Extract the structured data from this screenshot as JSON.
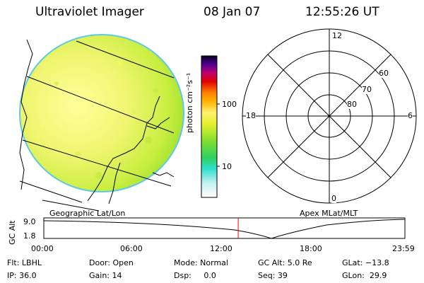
{
  "header": {
    "title": "Ultraviolet Imager",
    "date": "08 Jan 07",
    "time": "12:55:26 UT"
  },
  "colorbar": {
    "unit_label": "photon cm⁻²s⁻¹",
    "ticks": [
      "100",
      "10"
    ]
  },
  "image_panel": {
    "caption": "Geographic Lat/Lon"
  },
  "polar_panel": {
    "caption": "Apex MLat/MLT",
    "mlt_labels": {
      "top": "12",
      "right": "6",
      "bottom": "0",
      "left": "18"
    },
    "lat_labels": [
      "60",
      "70",
      "80"
    ]
  },
  "timeline": {
    "ylabel": "GC Alt",
    "ytick_top": "9.0",
    "ytick_bottom": "1.8",
    "xticks": [
      "00:00",
      "06:00",
      "12:00",
      "18:00",
      "23:59"
    ],
    "current_marker_hours": 12.92,
    "marker_color": "#ff0000"
  },
  "status": {
    "flt": "Flt: LBHL",
    "ip": "IP: 36.0",
    "door": "Door: Open",
    "gain": "Gain: 14",
    "mode": "Mode: Normal",
    "dsp": "Dsp:     0.0",
    "gc_alt": "GC Alt: 5.0 Re",
    "seq": "Seq: 39",
    "glat": "GLat: −13.8",
    "glon": "GLon:  29.9"
  }
}
